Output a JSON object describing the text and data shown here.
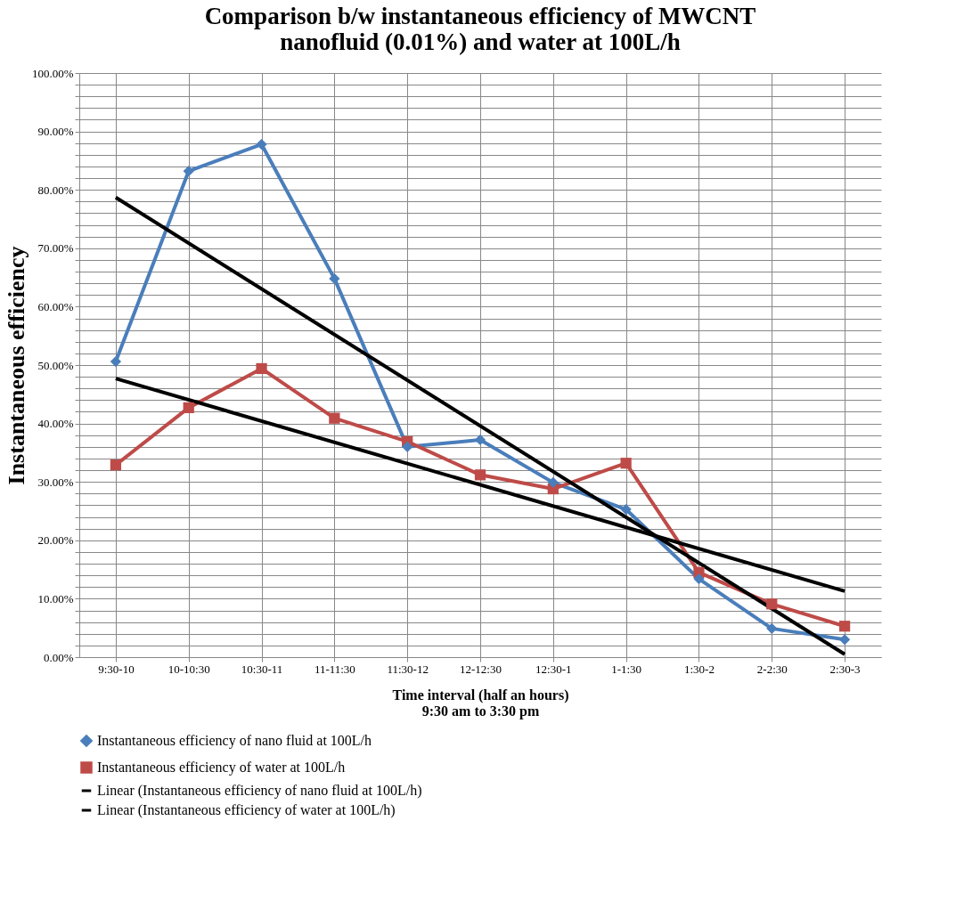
{
  "chart_data": {
    "type": "line",
    "title": "Comparison b/w instantaneous efficiency of MWCNT\nnanofluid (0.01%) and water at 100L/h",
    "xlabel": "Time interval (half an hours)\n9:30 am to 3:30 pm",
    "ylabel": "Instantaneous efficiency",
    "categories": [
      "9:30-10",
      "10-10:30",
      "10:30-11",
      "11-11:30",
      "11:30-12",
      "12-12:30",
      "12:30-1",
      "1-1:30",
      "1:30-2",
      "2-2:30",
      "2:30-3"
    ],
    "series": [
      {
        "name": "Instantaneous efficiency of nano fluid at 100L/h",
        "color": "#4a7ebb",
        "marker": "diamond",
        "values": [
          50.6,
          83.2,
          87.8,
          64.8,
          36.0,
          37.2,
          29.9,
          25.3,
          13.4,
          4.9,
          3.0
        ]
      },
      {
        "name": "Instantaneous efficiency of water at 100L/h",
        "color": "#be4b48",
        "marker": "square",
        "values": [
          32.9,
          42.7,
          49.4,
          40.9,
          36.9,
          31.2,
          28.8,
          33.2,
          14.5,
          9.1,
          5.3
        ]
      },
      {
        "name": "Linear (Instantaneous efficiency of nano fluid at 100L/h)",
        "color": "#000000",
        "marker": "none",
        "x": [
          "9:30-10",
          "2:30-3"
        ],
        "values": [
          78.7,
          0.5
        ]
      },
      {
        "name": "Linear (Instantaneous efficiency of water at 100L/h)",
        "color": "#000000",
        "marker": "none",
        "x": [
          "9:30-10",
          "2:30-3"
        ],
        "values": [
          47.7,
          11.3
        ]
      }
    ],
    "ylim": [
      0,
      100
    ],
    "yticks": [
      {
        "value": 0,
        "label": "0.00%"
      },
      {
        "value": 2,
        "label": null
      },
      {
        "value": 4,
        "label": null
      },
      {
        "value": 6,
        "label": null
      },
      {
        "value": 8,
        "label": null
      },
      {
        "value": 10,
        "label": "10.00%"
      },
      {
        "value": 12,
        "label": null
      },
      {
        "value": 14,
        "label": null
      },
      {
        "value": 16,
        "label": null
      },
      {
        "value": 18,
        "label": null
      },
      {
        "value": 20,
        "label": "20.00%"
      },
      {
        "value": 22,
        "label": null
      },
      {
        "value": 24,
        "label": null
      },
      {
        "value": 26,
        "label": null
      },
      {
        "value": 28,
        "label": null
      },
      {
        "value": 30,
        "label": "30.00%"
      },
      {
        "value": 32,
        "label": null
      },
      {
        "value": 34,
        "label": null
      },
      {
        "value": 36,
        "label": null
      },
      {
        "value": 38,
        "label": null
      },
      {
        "value": 40,
        "label": "40.00%"
      },
      {
        "value": 42,
        "label": null
      },
      {
        "value": 44,
        "label": null
      },
      {
        "value": 46,
        "label": null
      },
      {
        "value": 48,
        "label": null
      },
      {
        "value": 50,
        "label": "50.00%"
      },
      {
        "value": 52,
        "label": null
      },
      {
        "value": 54,
        "label": null
      },
      {
        "value": 56,
        "label": null
      },
      {
        "value": 58,
        "label": null
      },
      {
        "value": 60,
        "label": "60.00%"
      },
      {
        "value": 62,
        "label": null
      },
      {
        "value": 64,
        "label": null
      },
      {
        "value": 66,
        "label": null
      },
      {
        "value": 68,
        "label": null
      },
      {
        "value": 70,
        "label": "70.00%"
      },
      {
        "value": 72,
        "label": null
      },
      {
        "value": 74,
        "label": null
      },
      {
        "value": 76,
        "label": null
      },
      {
        "value": 78,
        "label": null
      },
      {
        "value": 80,
        "label": "80.00%"
      },
      {
        "value": 82,
        "label": null
      },
      {
        "value": 84,
        "label": null
      },
      {
        "value": 86,
        "label": null
      },
      {
        "value": 88,
        "label": null
      },
      {
        "value": 90,
        "label": "90.00%"
      },
      {
        "value": 92,
        "label": null
      },
      {
        "value": 94,
        "label": null
      },
      {
        "value": 96,
        "label": null
      },
      {
        "value": 98,
        "label": null
      },
      {
        "value": 100,
        "label": "100.00%"
      }
    ],
    "grid": true,
    "legend": "bottom",
    "line_style": "solid"
  }
}
